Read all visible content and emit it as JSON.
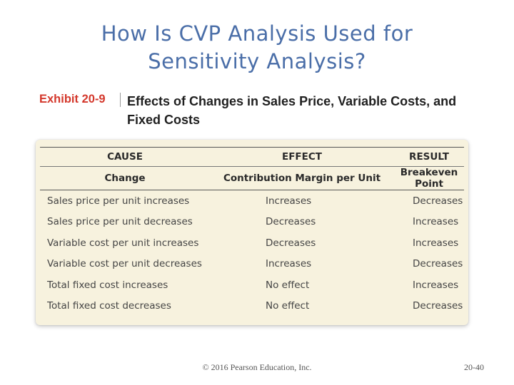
{
  "slide": {
    "title_line1": "How Is CVP Analysis Used for",
    "title_line2": "Sensitivity Analysis?"
  },
  "exhibit": {
    "label": "Exhibit 20-9",
    "title": "Effects of Changes in Sales Price, Variable Costs, and Fixed Costs",
    "accent_color": "#d4382c",
    "table": {
      "group_headers": [
        "CAUSE",
        "EFFECT",
        "RESULT"
      ],
      "column_headers": [
        "Change",
        "Contribution Margin per Unit",
        "Breakeven Point"
      ],
      "rows": [
        [
          "Sales price per unit increases",
          "Increases",
          "Decreases"
        ],
        [
          "Sales price per unit decreases",
          "Decreases",
          "Increases"
        ],
        [
          "Variable cost per unit increases",
          "Decreases",
          "Increases"
        ],
        [
          "Variable cost per unit decreases",
          "Increases",
          "Decreases"
        ],
        [
          "Total fixed cost increases",
          "No effect",
          "Increases"
        ],
        [
          "Total fixed cost decreases",
          "No effect",
          "Decreases"
        ]
      ]
    }
  },
  "footer": {
    "copyright": "© 2016 Pearson Education, Inc.",
    "page": "20-40"
  }
}
